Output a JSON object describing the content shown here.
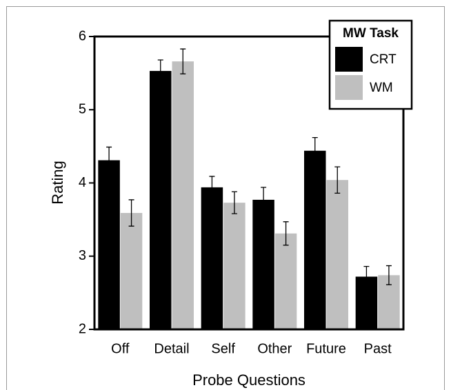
{
  "chart_data": {
    "type": "bar",
    "xlabel": "Probe Questions",
    "ylabel": "Rating",
    "categories": [
      "Off",
      "Detail",
      "Self",
      "Other",
      "Future",
      "Past"
    ],
    "series": [
      {
        "name": "CRT",
        "color": "#000000",
        "values": [
          4.31,
          5.53,
          3.94,
          3.77,
          4.44,
          2.72
        ],
        "errors": [
          0.18,
          0.15,
          0.15,
          0.17,
          0.18,
          0.14
        ]
      },
      {
        "name": "WM",
        "color": "#bfbfbf",
        "values": [
          3.59,
          5.66,
          3.73,
          3.31,
          4.04,
          2.74
        ],
        "errors": [
          0.18,
          0.17,
          0.15,
          0.16,
          0.18,
          0.13
        ]
      }
    ],
    "ylim": [
      2,
      6
    ],
    "yticks": [
      2,
      3,
      4,
      5,
      6
    ],
    "legend_title": "MW Task",
    "legend": "upper right"
  }
}
